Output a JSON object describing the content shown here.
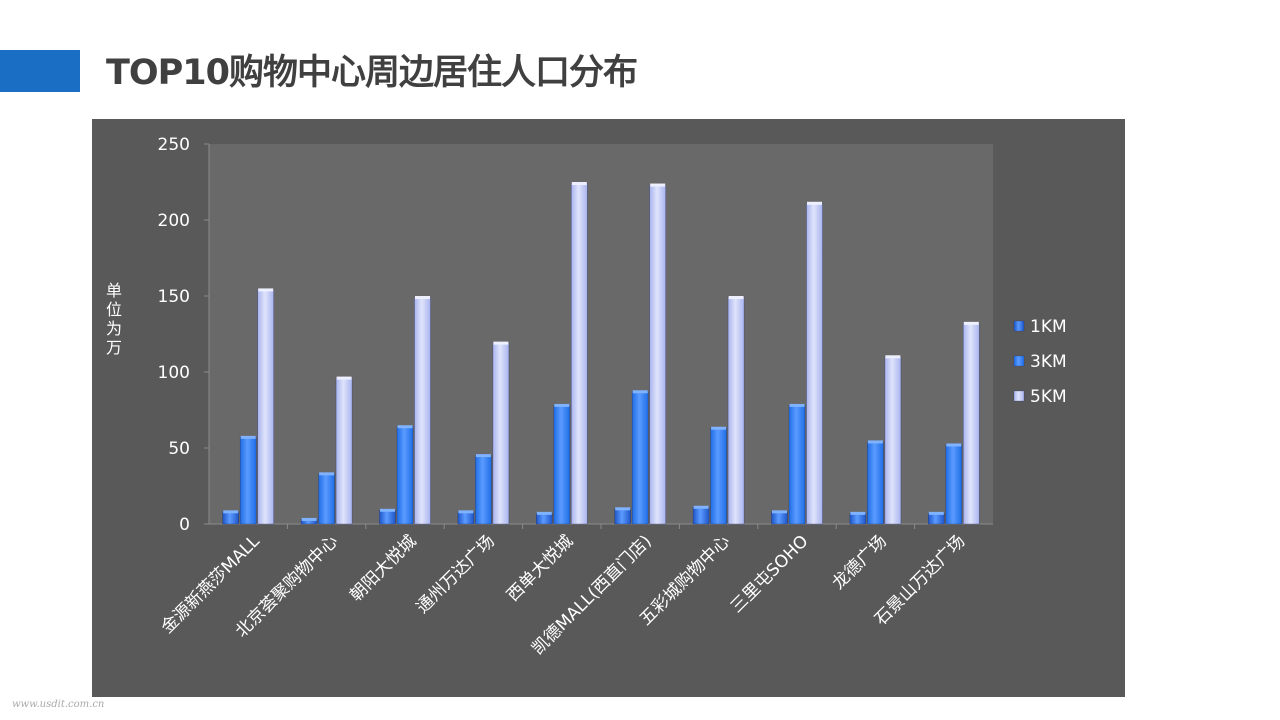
{
  "slide": {
    "title": "TOP10购物中心周边居住人口分布",
    "watermark": "www.usdit.com.cn",
    "accent_color": "#1a6fc4"
  },
  "chart_data": {
    "type": "bar",
    "title": "",
    "xlabel": "",
    "ylabel": "单位为万",
    "ylim": [
      0,
      250
    ],
    "yticks": [
      0,
      50,
      100,
      150,
      200,
      250
    ],
    "grid": false,
    "legend_position": "right",
    "categories": [
      "金源新燕莎MALL",
      "北京荟聚购物中心",
      "朝阳大悦城",
      "通州万达广场",
      "西单大悦城",
      "凯德MALL(西直门店)",
      "五彩城购物中心",
      "三里屯SOHO",
      "龙德广场",
      "石景山万达广场"
    ],
    "series": [
      {
        "name": "1KM",
        "color": "#1f56c8",
        "values": [
          8,
          3,
          9,
          8,
          7,
          10,
          11,
          8,
          7,
          7
        ]
      },
      {
        "name": "3KM",
        "color": "#1f6ee6",
        "values": [
          57,
          33,
          64,
          45,
          78,
          87,
          63,
          78,
          54,
          52
        ]
      },
      {
        "name": "5KM",
        "color": "#a9b4ee",
        "values": [
          154,
          96,
          149,
          119,
          224,
          223,
          149,
          211,
          110,
          132
        ]
      }
    ]
  }
}
